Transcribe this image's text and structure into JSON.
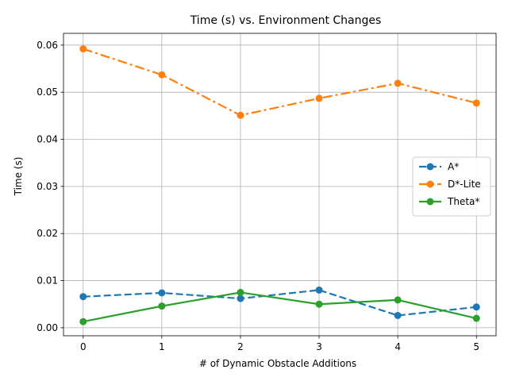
{
  "chart_data": {
    "type": "line",
    "title": "Time (s) vs. Environment Changes",
    "xlabel": "# of Dynamic Obstacle Additions",
    "ylabel": "Time (s)",
    "x": [
      0,
      1,
      2,
      3,
      4,
      5
    ],
    "x_ticks": [
      "0",
      "1",
      "2",
      "3",
      "4",
      "5"
    ],
    "y_ticks": [
      "0.00",
      "0.01",
      "0.02",
      "0.03",
      "0.04",
      "0.05",
      "0.06"
    ],
    "xlim": [
      -0.25,
      5.25
    ],
    "ylim": [
      -0.0017,
      0.0625
    ],
    "grid": true,
    "legend_position": "right",
    "series": [
      {
        "name": "A*",
        "color": "#1f77b4",
        "dash": "dashed",
        "values": [
          0.0066,
          0.0074,
          0.0062,
          0.008,
          0.0026,
          0.0044
        ]
      },
      {
        "name": "D*-Lite",
        "color": "#ff7f0e",
        "dash": "dashdot",
        "values": [
          0.0592,
          0.0537,
          0.0451,
          0.0487,
          0.0519,
          0.0477
        ]
      },
      {
        "name": "Theta*",
        "color": "#2ca02c",
        "dash": "solid",
        "values": [
          0.0013,
          0.0046,
          0.0075,
          0.005,
          0.0059,
          0.002
        ]
      }
    ]
  }
}
